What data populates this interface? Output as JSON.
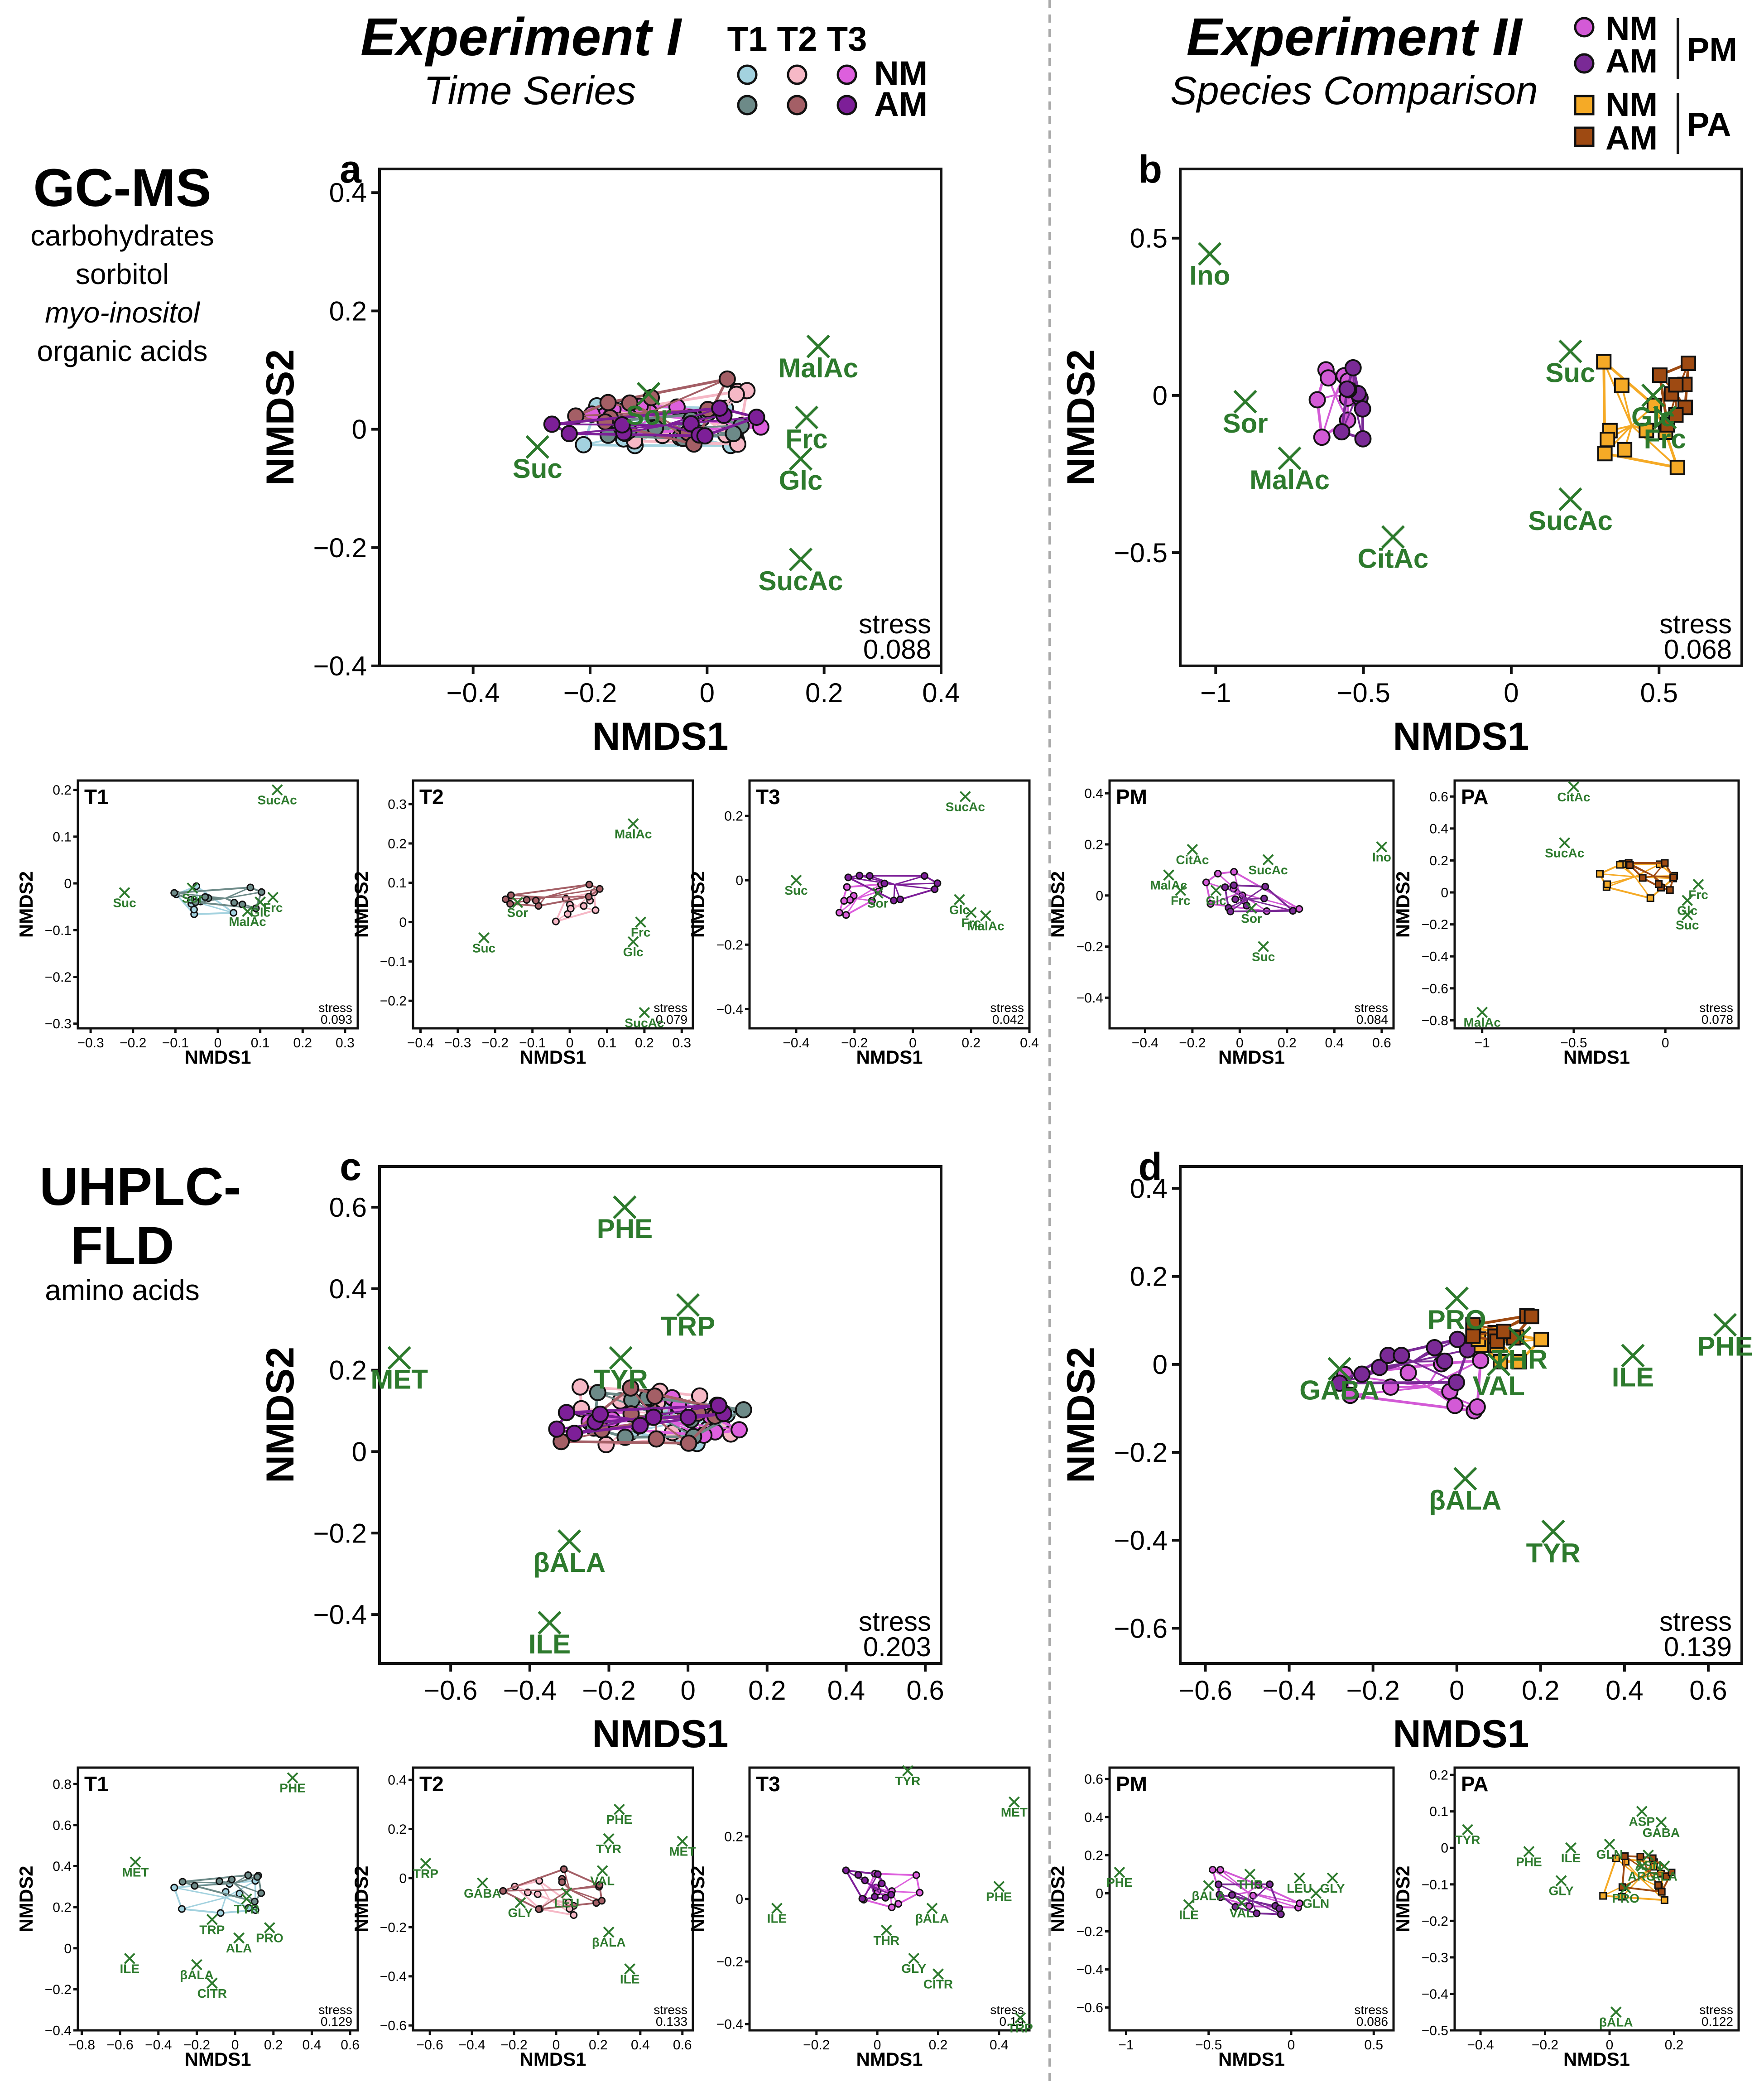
{
  "colors": {
    "t1_nm": "#a3d2df",
    "t2_nm": "#f6b8c6",
    "t3_nm": "#dd5fdd",
    "t1_am": "#6d8a88",
    "t2_am": "#a45f66",
    "t3_am": "#7d1f98",
    "pm_nm": "#d35ad6",
    "pm_am": "#7a2a96",
    "pa_nm": "#f5aa26",
    "pa_am": "#9e4a12",
    "loading": "#2d7a2d",
    "frame": "#111111",
    "divider": "#aaaaaa"
  },
  "header": {
    "exp1_title": "Experiment I",
    "exp1_subtitle": "Time Series",
    "exp2_title": "Experiment II",
    "exp2_subtitle": "Species Comparison",
    "legend1": {
      "t1": "T1",
      "t2": "T2",
      "t3": "T3",
      "nm": "NM",
      "am": "AM"
    },
    "legend2": {
      "nm1": "NM",
      "am1": "AM",
      "pm": "PM",
      "nm2": "NM",
      "am2": "AM",
      "pa": "PA"
    }
  },
  "rows": [
    {
      "title": "GC-MS",
      "lines": [
        "carbohydrates",
        "sorbitol",
        "myo-inositol",
        "organic acids"
      ]
    },
    {
      "title_line1": "UHPLC-",
      "title_line2": "FLD",
      "lines": [
        "amino acids"
      ]
    }
  ],
  "axis_labels": {
    "x": "NMDS1",
    "y": "NMDS2",
    "stress": "stress"
  },
  "chart_data": [
    {
      "id": "a",
      "label": "a",
      "type": "scatter",
      "series": "time",
      "xlim": [
        -0.56,
        0.4
      ],
      "ylim": [
        -0.4,
        0.44
      ],
      "xticks": [
        -0.4,
        -0.2,
        0,
        0.2,
        0.4
      ],
      "yticks": [
        -0.4,
        -0.2,
        0,
        0.2,
        0.4
      ],
      "stress": "0.088",
      "loadings": [
        {
          "label": "MalAc",
          "x": 0.19,
          "y": 0.14
        },
        {
          "label": "Sor",
          "x": -0.1,
          "y": 0.06
        },
        {
          "label": "Frc",
          "x": 0.17,
          "y": 0.02
        },
        {
          "label": "Suc",
          "x": -0.29,
          "y": -0.03
        },
        {
          "label": "Glc",
          "x": 0.16,
          "y": -0.05
        },
        {
          "label": "SucAc",
          "x": 0.16,
          "y": -0.22
        }
      ]
    },
    {
      "id": "b",
      "label": "b",
      "type": "scatter",
      "series": "species",
      "xlim": [
        -1.12,
        0.78
      ],
      "ylim": [
        -0.86,
        0.72
      ],
      "xticks": [
        -1,
        -0.5,
        0,
        0.5
      ],
      "yticks": [
        -0.5,
        0,
        0.5
      ],
      "stress": "0.068",
      "loadings": [
        {
          "label": "Ino",
          "x": -1.02,
          "y": 0.45
        },
        {
          "label": "Sor",
          "x": -0.9,
          "y": -0.02
        },
        {
          "label": "MalAc",
          "x": -0.75,
          "y": -0.2
        },
        {
          "label": "CitAc",
          "x": -0.4,
          "y": -0.45
        },
        {
          "label": "Suc",
          "x": 0.2,
          "y": 0.14
        },
        {
          "label": "Glc",
          "x": 0.48,
          "y": 0.0
        },
        {
          "label": "Frc",
          "x": 0.52,
          "y": -0.07
        },
        {
          "label": "SucAc",
          "x": 0.2,
          "y": -0.33
        }
      ]
    },
    {
      "id": "c",
      "label": "c",
      "type": "scatter",
      "series": "time",
      "xlim": [
        -0.78,
        0.64
      ],
      "ylim": [
        -0.52,
        0.7
      ],
      "xticks": [
        -0.6,
        -0.4,
        -0.2,
        0,
        0.2,
        0.4,
        0.6
      ],
      "yticks": [
        -0.4,
        -0.2,
        0,
        0.2,
        0.4,
        0.6
      ],
      "stress": "0.203",
      "loadings": [
        {
          "label": "PHE",
          "x": -0.16,
          "y": 0.6
        },
        {
          "label": "TRP",
          "x": 0.0,
          "y": 0.36
        },
        {
          "label": "MET",
          "x": -0.73,
          "y": 0.23
        },
        {
          "label": "TYR",
          "x": -0.17,
          "y": 0.23
        },
        {
          "label": "βALA",
          "x": -0.3,
          "y": -0.22
        },
        {
          "label": "ILE",
          "x": -0.35,
          "y": -0.42
        }
      ]
    },
    {
      "id": "d",
      "label": "d",
      "type": "scatter",
      "series": "species",
      "xlim": [
        -0.66,
        0.68
      ],
      "ylim": [
        -0.68,
        0.45
      ],
      "xticks": [
        -0.6,
        -0.4,
        -0.2,
        0,
        0.2,
        0.4,
        0.6
      ],
      "yticks": [
        -0.6,
        -0.4,
        -0.2,
        0,
        0.2,
        0.4
      ],
      "stress": "0.139",
      "loadings": [
        {
          "label": "PRO",
          "x": 0.0,
          "y": 0.15
        },
        {
          "label": "THR",
          "x": 0.15,
          "y": 0.06
        },
        {
          "label": "PHE",
          "x": 0.64,
          "y": 0.09
        },
        {
          "label": "GABA",
          "x": -0.28,
          "y": -0.01
        },
        {
          "label": "VAL",
          "x": 0.1,
          "y": 0.0
        },
        {
          "label": "ILE",
          "x": 0.42,
          "y": 0.02
        },
        {
          "label": "βALA",
          "x": 0.02,
          "y": -0.26
        },
        {
          "label": "TYR",
          "x": 0.23,
          "y": -0.38
        }
      ]
    },
    {
      "id": "a1",
      "label": "T1",
      "type": "scatter",
      "series": "time1",
      "xlim": [
        -0.33,
        0.33
      ],
      "ylim": [
        -0.31,
        0.22
      ],
      "xticks": [
        -0.3,
        -0.2,
        -0.1,
        0,
        0.1,
        0.2,
        0.3
      ],
      "yticks": [
        -0.3,
        -0.2,
        -0.1,
        0,
        0.1,
        0.2
      ],
      "stress": "0.093",
      "loadings": [
        {
          "label": "SucAc",
          "x": 0.14,
          "y": 0.2
        },
        {
          "label": "Suc",
          "x": -0.22,
          "y": -0.02
        },
        {
          "label": "Sor",
          "x": -0.06,
          "y": -0.01
        },
        {
          "label": "Frc",
          "x": 0.13,
          "y": -0.03
        },
        {
          "label": "Glc",
          "x": 0.1,
          "y": -0.04
        },
        {
          "label": "MalAc",
          "x": 0.07,
          "y": -0.06
        }
      ]
    },
    {
      "id": "a2",
      "label": "T2",
      "type": "scatter",
      "series": "time2",
      "xlim": [
        -0.42,
        0.33
      ],
      "ylim": [
        -0.27,
        0.36
      ],
      "xticks": [
        -0.4,
        -0.3,
        -0.2,
        -0.1,
        0,
        0.1,
        0.2,
        0.3
      ],
      "yticks": [
        -0.2,
        -0.1,
        0,
        0.1,
        0.2,
        0.3
      ],
      "stress": "0.079",
      "loadings": [
        {
          "label": "MalAc",
          "x": 0.17,
          "y": 0.25
        },
        {
          "label": "Sor",
          "x": -0.14,
          "y": 0.05
        },
        {
          "label": "Suc",
          "x": -0.23,
          "y": -0.04
        },
        {
          "label": "Frc",
          "x": 0.19,
          "y": 0.0
        },
        {
          "label": "Glc",
          "x": 0.17,
          "y": -0.05
        },
        {
          "label": "SucAc",
          "x": 0.2,
          "y": -0.23
        }
      ]
    },
    {
      "id": "a3",
      "label": "T3",
      "type": "scatter",
      "series": "time3",
      "xlim": [
        -0.56,
        0.4
      ],
      "ylim": [
        -0.46,
        0.31
      ],
      "xticks": [
        -0.4,
        -0.2,
        0,
        0.2,
        0.4
      ],
      "yticks": [
        -0.4,
        -0.2,
        0,
        0.2
      ],
      "stress": "0.042",
      "loadings": [
        {
          "label": "SucAc",
          "x": 0.18,
          "y": 0.26
        },
        {
          "label": "Suc",
          "x": -0.4,
          "y": 0.0
        },
        {
          "label": "Sor",
          "x": -0.12,
          "y": -0.04
        },
        {
          "label": "Glc",
          "x": 0.16,
          "y": -0.06
        },
        {
          "label": "Frc",
          "x": 0.2,
          "y": -0.1
        },
        {
          "label": "MalAc",
          "x": 0.25,
          "y": -0.11
        }
      ]
    },
    {
      "id": "b1",
      "label": "PM",
      "type": "scatter",
      "series": "pm",
      "xlim": [
        -0.55,
        0.65
      ],
      "ylim": [
        -0.52,
        0.45
      ],
      "xticks": [
        -0.4,
        -0.2,
        0,
        0.2,
        0.4,
        0.6
      ],
      "yticks": [
        -0.4,
        -0.2,
        0,
        0.2,
        0.4
      ],
      "stress": "0.084",
      "loadings": [
        {
          "label": "CitAc",
          "x": -0.2,
          "y": 0.18
        },
        {
          "label": "SucAc",
          "x": 0.12,
          "y": 0.14
        },
        {
          "label": "Ino",
          "x": 0.6,
          "y": 0.19
        },
        {
          "label": "MalAc",
          "x": -0.3,
          "y": 0.08
        },
        {
          "label": "Frc",
          "x": -0.25,
          "y": 0.02
        },
        {
          "label": "Glc",
          "x": -0.1,
          "y": 0.02
        },
        {
          "label": "Sor",
          "x": 0.05,
          "y": -0.05
        },
        {
          "label": "Suc",
          "x": 0.1,
          "y": -0.2
        }
      ]
    },
    {
      "id": "b2",
      "label": "PA",
      "type": "scatter",
      "series": "pa",
      "xlim": [
        -1.15,
        0.4
      ],
      "ylim": [
        -0.85,
        0.7
      ],
      "xticks": [
        -1,
        -0.5,
        0
      ],
      "yticks": [
        -0.8,
        -0.6,
        -0.4,
        -0.2,
        0,
        0.2,
        0.4,
        0.6
      ],
      "stress": "0.078",
      "loadings": [
        {
          "label": "CitAc",
          "x": -0.5,
          "y": 0.66
        },
        {
          "label": "SucAc",
          "x": -0.55,
          "y": 0.31
        },
        {
          "label": "Frc",
          "x": 0.18,
          "y": 0.05
        },
        {
          "label": "Glc",
          "x": 0.12,
          "y": -0.05
        },
        {
          "label": "Suc",
          "x": 0.12,
          "y": -0.14
        },
        {
          "label": "MalAc",
          "x": -1.0,
          "y": -0.75
        }
      ]
    },
    {
      "id": "c1",
      "label": "T1",
      "type": "scatter",
      "series": "time1",
      "xlim": [
        -0.82,
        0.64
      ],
      "ylim": [
        -0.4,
        0.88
      ],
      "xticks": [
        -0.8,
        -0.6,
        -0.4,
        -0.2,
        0,
        0.2,
        0.4,
        0.6
      ],
      "yticks": [
        -0.4,
        -0.2,
        0,
        0.2,
        0.4,
        0.6,
        0.8
      ],
      "stress": "0.129",
      "loadings": [
        {
          "label": "PHE",
          "x": 0.3,
          "y": 0.83
        },
        {
          "label": "MET",
          "x": -0.52,
          "y": 0.42
        },
        {
          "label": "TYR",
          "x": 0.06,
          "y": 0.24
        },
        {
          "label": "TRP",
          "x": -0.12,
          "y": 0.14
        },
        {
          "label": "PRO",
          "x": 0.18,
          "y": 0.1
        },
        {
          "label": "ALA",
          "x": 0.02,
          "y": 0.05
        },
        {
          "label": "ILE",
          "x": -0.55,
          "y": -0.05
        },
        {
          "label": "βALA",
          "x": -0.2,
          "y": -0.08
        },
        {
          "label": "CITR",
          "x": -0.12,
          "y": -0.17
        }
      ]
    },
    {
      "id": "c2",
      "label": "T2",
      "type": "scatter",
      "series": "time2",
      "xlim": [
        -0.68,
        0.65
      ],
      "ylim": [
        -0.62,
        0.45
      ],
      "xticks": [
        -0.6,
        -0.4,
        -0.2,
        0,
        0.2,
        0.4,
        0.6
      ],
      "yticks": [
        -0.6,
        -0.4,
        -0.2,
        0,
        0.2,
        0.4
      ],
      "stress": "0.133",
      "loadings": [
        {
          "label": "PHE",
          "x": 0.3,
          "y": 0.28
        },
        {
          "label": "TYR",
          "x": 0.25,
          "y": 0.16
        },
        {
          "label": "MET",
          "x": 0.6,
          "y": 0.15
        },
        {
          "label": "TRP",
          "x": -0.62,
          "y": 0.06
        },
        {
          "label": "VAL",
          "x": 0.22,
          "y": 0.03
        },
        {
          "label": "GABA",
          "x": -0.35,
          "y": -0.02
        },
        {
          "label": "GLY",
          "x": -0.17,
          "y": -0.1
        },
        {
          "label": "LEU",
          "x": 0.05,
          "y": -0.06
        },
        {
          "label": "βALA",
          "x": 0.25,
          "y": -0.22
        },
        {
          "label": "ILE",
          "x": 0.35,
          "y": -0.37
        }
      ]
    },
    {
      "id": "c3",
      "label": "T3",
      "type": "scatter",
      "series": "time3",
      "xlim": [
        -0.42,
        0.5
      ],
      "ylim": [
        -0.42,
        0.42
      ],
      "xticks": [
        -0.2,
        0,
        0.2,
        0.4
      ],
      "yticks": [
        -0.4,
        -0.2,
        0,
        0.2
      ],
      "stress": "0.19",
      "loadings": [
        {
          "label": "TYR",
          "x": 0.1,
          "y": 0.41
        },
        {
          "label": "MET",
          "x": 0.45,
          "y": 0.31
        },
        {
          "label": "PHE",
          "x": 0.4,
          "y": 0.04
        },
        {
          "label": "ILE",
          "x": -0.33,
          "y": -0.03
        },
        {
          "label": "βALA",
          "x": 0.18,
          "y": -0.03
        },
        {
          "label": "THR",
          "x": 0.03,
          "y": -0.1
        },
        {
          "label": "GLY",
          "x": 0.12,
          "y": -0.19
        },
        {
          "label": "CITR",
          "x": 0.2,
          "y": -0.24
        },
        {
          "label": "TRP",
          "x": 0.47,
          "y": -0.38
        }
      ]
    },
    {
      "id": "d1",
      "label": "PM",
      "type": "scatter",
      "series": "pm",
      "xlim": [
        -1.1,
        0.62
      ],
      "ylim": [
        -0.72,
        0.66
      ],
      "xticks": [
        -1,
        -0.5,
        0,
        0.5
      ],
      "yticks": [
        -0.6,
        -0.4,
        -0.2,
        0,
        0.2,
        0.4,
        0.6
      ],
      "stress": "0.086",
      "loadings": [
        {
          "label": "PHE",
          "x": -1.04,
          "y": 0.11
        },
        {
          "label": "THR",
          "x": -0.25,
          "y": 0.1
        },
        {
          "label": "LEU",
          "x": 0.05,
          "y": 0.08
        },
        {
          "label": "GLY",
          "x": 0.25,
          "y": 0.08
        },
        {
          "label": "βALA",
          "x": -0.5,
          "y": 0.04
        },
        {
          "label": "GLN",
          "x": 0.15,
          "y": 0.0
        },
        {
          "label": "ILE",
          "x": -0.62,
          "y": -0.06
        },
        {
          "label": "VAL",
          "x": -0.3,
          "y": -0.05
        }
      ]
    },
    {
      "id": "d2",
      "label": "PA",
      "type": "scatter",
      "series": "pa",
      "xlim": [
        -0.48,
        0.4
      ],
      "ylim": [
        -0.5,
        0.22
      ],
      "xticks": [
        -0.4,
        -0.2,
        0,
        0.2
      ],
      "yticks": [
        -0.5,
        -0.4,
        -0.3,
        -0.2,
        -0.1,
        0,
        0.1,
        0.2
      ],
      "stress": "0.122",
      "loadings": [
        {
          "label": "TYR",
          "x": -0.44,
          "y": 0.05
        },
        {
          "label": "ASP",
          "x": 0.1,
          "y": 0.1
        },
        {
          "label": "GABA",
          "x": 0.16,
          "y": 0.07
        },
        {
          "label": "PHE",
          "x": -0.25,
          "y": -0.01
        },
        {
          "label": "ILE",
          "x": -0.12,
          "y": 0.0
        },
        {
          "label": "GLN",
          "x": 0.0,
          "y": 0.01
        },
        {
          "label": "ASN",
          "x": 0.12,
          "y": -0.02
        },
        {
          "label": "ARG",
          "x": 0.1,
          "y": -0.05
        },
        {
          "label": "ALA",
          "x": 0.17,
          "y": -0.05
        },
        {
          "label": "GLY",
          "x": -0.15,
          "y": -0.09
        },
        {
          "label": "PRO",
          "x": 0.05,
          "y": -0.11
        },
        {
          "label": "βALA",
          "x": 0.02,
          "y": -0.45
        }
      ]
    }
  ]
}
